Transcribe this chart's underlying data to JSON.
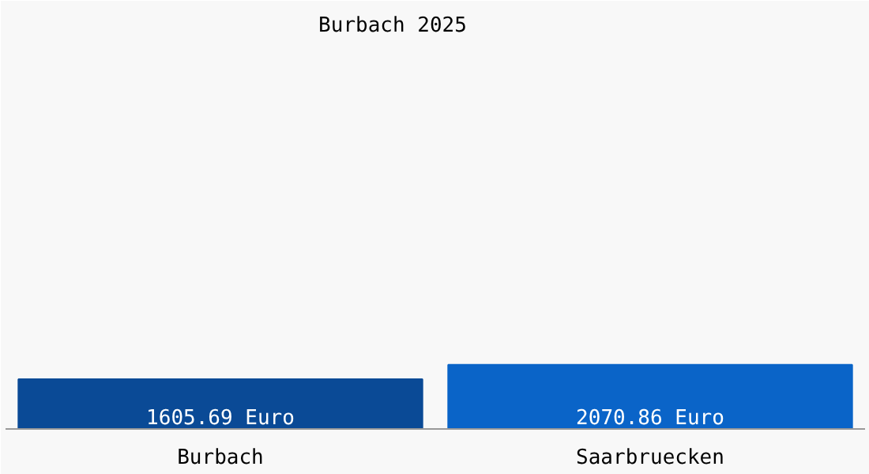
{
  "chart_data": {
    "type": "bar",
    "title": "Burbach 2025",
    "categories": [
      "Burbach",
      "Saarbruecken"
    ],
    "values": [
      1605.69,
      2070.86
    ],
    "colors": [
      "#0a4a96",
      "#0a64c8"
    ],
    "value_labels": [
      "1605.69 Euro",
      "2070.86 Euro"
    ],
    "ylim": [
      0,
      13800
    ]
  }
}
